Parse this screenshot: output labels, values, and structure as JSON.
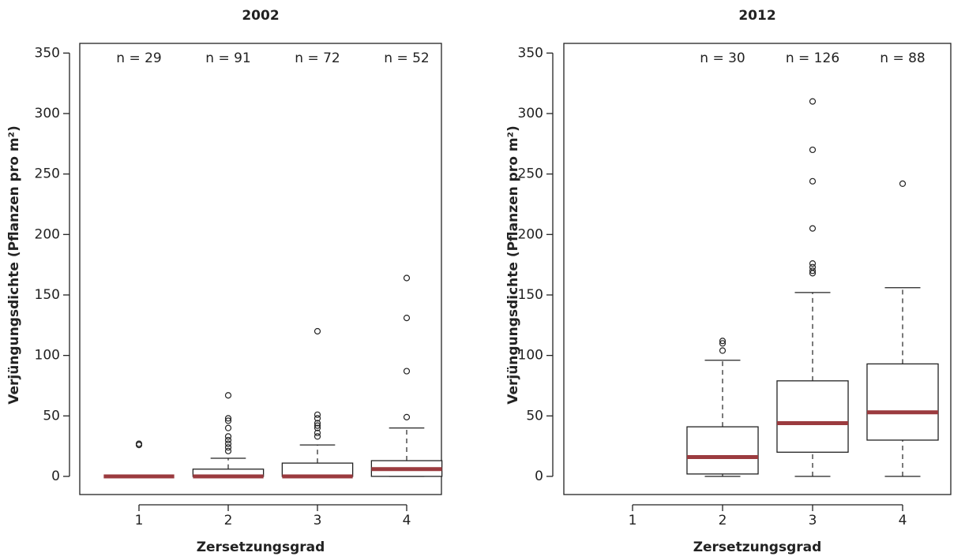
{
  "chart_data": [
    {
      "type": "box",
      "title": "2002",
      "x_label": "Zersetzungsgrad",
      "y_label": "Verjüngungsdichte (Pflanzen pro m²)",
      "categories": [
        "1",
        "2",
        "3",
        "4"
      ],
      "n_labels": [
        "n = 29",
        "n = 91",
        "n = 72",
        "n = 52"
      ],
      "boxes": [
        {
          "min": 0,
          "q1": 0,
          "median": 0,
          "q3": 0,
          "max": 0,
          "outliers": [
            26,
            27
          ]
        },
        {
          "min": 0,
          "q1": 0,
          "median": 0,
          "q3": 6,
          "max": 15,
          "outliers": [
            67,
            48,
            46,
            40,
            33,
            30,
            27,
            24,
            21
          ]
        },
        {
          "min": 0,
          "q1": 0,
          "median": 0,
          "q3": 11,
          "max": 26,
          "outliers": [
            120,
            51,
            48,
            44,
            42,
            40,
            36,
            33
          ]
        },
        {
          "min": 0,
          "q1": 0,
          "median": 6,
          "q3": 13,
          "max": 40,
          "outliers": [
            164,
            131,
            87,
            49
          ]
        }
      ],
      "median_color": "#9b3b3f",
      "ylim": [
        -15,
        358
      ],
      "yticks": [
        0,
        50,
        100,
        150,
        200,
        250,
        300,
        350
      ]
    },
    {
      "type": "box",
      "title": "2012",
      "x_label": "Zersetzungsgrad",
      "y_label": "Verjüngungsdichte (Pflanzen pro m²)",
      "categories": [
        "1",
        "2",
        "3",
        "4"
      ],
      "n_labels": [
        null,
        "n = 30",
        "n = 126",
        "n = 88"
      ],
      "boxes": [
        null,
        {
          "min": 0,
          "q1": 2,
          "median": 16,
          "q3": 41,
          "max": 96,
          "outliers": [
            104,
            110,
            112
          ]
        },
        {
          "min": 0,
          "q1": 20,
          "median": 44,
          "q3": 79,
          "max": 152,
          "outliers": [
            310,
            270,
            244,
            205,
            176,
            173,
            170,
            168
          ]
        },
        {
          "min": 0,
          "q1": 30,
          "median": 53,
          "q3": 93,
          "max": 156,
          "outliers": [
            242
          ]
        }
      ],
      "median_color": "#9b3b3f",
      "ylim": [
        -15,
        358
      ],
      "yticks": [
        0,
        50,
        100,
        150,
        200,
        250,
        300,
        350
      ]
    }
  ]
}
